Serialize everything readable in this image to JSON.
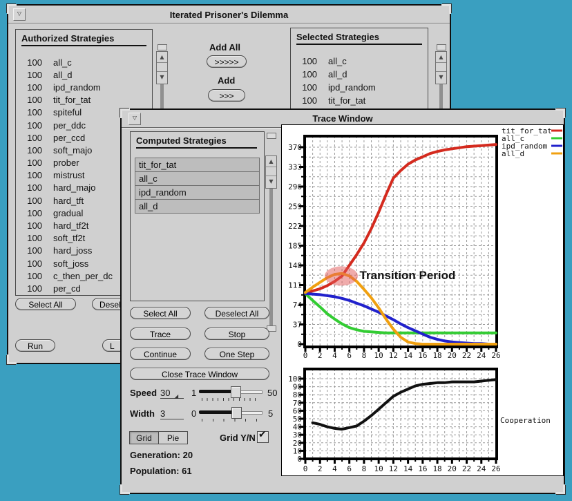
{
  "icons": {
    "window_menu": "▽",
    "scroll_up": "▲",
    "scroll_down": "▼",
    "check": "✔",
    "caret": "◢"
  },
  "colors": {
    "desktop": "#3a9fc0",
    "window_gray": "#d0d0d0",
    "tit_for_tat": "#d42a1e",
    "all_c": "#33cc33",
    "ipd_random": "#2121cc",
    "all_d": "#f0a010",
    "cooperation": "#111111",
    "annotation_ellipse": "rgba(226,90,90,0.5)"
  },
  "main_window": {
    "title": "Iterated Prisoner's Dilemma",
    "authorized": {
      "heading": "Authorized Strategies",
      "items": [
        {
          "count": "100",
          "name": "all_c"
        },
        {
          "count": "100",
          "name": "all_d"
        },
        {
          "count": "100",
          "name": "ipd_random"
        },
        {
          "count": "100",
          "name": "tit_for_tat"
        },
        {
          "count": "100",
          "name": "spiteful"
        },
        {
          "count": "100",
          "name": "per_ddc"
        },
        {
          "count": "100",
          "name": "per_ccd"
        },
        {
          "count": "100",
          "name": "soft_majo"
        },
        {
          "count": "100",
          "name": "prober"
        },
        {
          "count": "100",
          "name": "mistrust"
        },
        {
          "count": "100",
          "name": "hard_majo"
        },
        {
          "count": "100",
          "name": "hard_tft"
        },
        {
          "count": "100",
          "name": "gradual"
        },
        {
          "count": "100",
          "name": "hard_tf2t"
        },
        {
          "count": "100",
          "name": "soft_tf2t"
        },
        {
          "count": "100",
          "name": "hard_joss"
        },
        {
          "count": "100",
          "name": "soft_joss"
        },
        {
          "count": "100",
          "name": "c_then_per_dc"
        },
        {
          "count": "100",
          "name": "per_cd"
        }
      ]
    },
    "transfer": {
      "add_all_label": "Add All",
      "add_all_button": ">>>>>",
      "add_label": "Add",
      "add_button": ">>>"
    },
    "selected": {
      "heading": "Selected Strategies",
      "items": [
        {
          "count": "100",
          "name": "all_c"
        },
        {
          "count": "100",
          "name": "all_d"
        },
        {
          "count": "100",
          "name": "ipd_random"
        },
        {
          "count": "100",
          "name": "tit_for_tat"
        }
      ]
    },
    "footer_buttons": {
      "select_all": "Select All",
      "deselect_all": "Deselect All",
      "run": "Run",
      "partial": "L"
    }
  },
  "trace_window": {
    "title": "Trace Window",
    "computed": {
      "heading": "Computed Strategies",
      "items": [
        "tit_for_tat",
        "all_c",
        "ipd_random",
        "all_d"
      ]
    },
    "controls": {
      "select_all": "Select All",
      "deselect_all": "Deselect All",
      "trace": "Trace",
      "stop": "Stop",
      "continue": "Continue",
      "one_step": "One Step",
      "close": "Close Trace Window"
    },
    "speed": {
      "label": "Speed",
      "value": "30",
      "min": "1",
      "max": "50"
    },
    "width": {
      "label": "Width",
      "value": "3",
      "min": "0",
      "max": "5"
    },
    "view_toggle": {
      "grid": "Grid",
      "pie": "Pie",
      "active": "Grid"
    },
    "grid_yn": {
      "label": "Grid Y/N",
      "checked": true
    },
    "generation_label": "Generation:",
    "generation_value": "20",
    "population_label": "Population:",
    "population_value": "61"
  },
  "chart_data": [
    {
      "type": "line",
      "title": "",
      "xlim": [
        0,
        26
      ],
      "ylim": [
        0,
        393
      ],
      "x_ticks": [
        0,
        2,
        4,
        6,
        8,
        10,
        12,
        14,
        16,
        18,
        20,
        22,
        24,
        26
      ],
      "y_ticks": [
        0,
        37,
        74,
        111,
        148,
        185,
        222,
        259,
        296,
        333,
        370
      ],
      "grid": true,
      "legend_position": "top-right",
      "series": [
        {
          "name": "tit_for_tat",
          "color": "#d42a1e",
          "x": [
            0,
            1,
            2,
            3,
            4,
            5,
            6,
            7,
            8,
            9,
            10,
            11,
            12,
            13,
            14,
            15,
            16,
            17,
            18,
            19,
            20,
            21,
            22,
            23,
            24,
            25,
            26
          ],
          "values": [
            97,
            100,
            104,
            110,
            118,
            128,
            148,
            168,
            190,
            217,
            248,
            281,
            312,
            326,
            338,
            346,
            352,
            358,
            362,
            365,
            367,
            369,
            371,
            372,
            373,
            374,
            375
          ]
        },
        {
          "name": "all_c",
          "color": "#33cc33",
          "x": [
            0,
            1,
            2,
            3,
            4,
            5,
            6,
            7,
            8,
            9,
            10,
            11,
            12,
            13,
            14,
            15,
            16,
            17,
            18,
            19,
            20,
            21,
            22,
            23,
            24,
            25,
            26
          ],
          "values": [
            95,
            82,
            70,
            57,
            47,
            38,
            31,
            27,
            24,
            23,
            22,
            21,
            21,
            21,
            21,
            21,
            21,
            21,
            21,
            21,
            21,
            21,
            21,
            21,
            21,
            21,
            21
          ]
        },
        {
          "name": "ipd_random",
          "color": "#2121cc",
          "x": [
            0,
            1,
            2,
            3,
            4,
            5,
            6,
            7,
            8,
            9,
            10,
            11,
            12,
            13,
            14,
            15,
            16,
            17,
            18,
            19,
            20,
            21,
            22,
            23,
            24,
            25,
            26
          ],
          "values": [
            95,
            94,
            93,
            91,
            89,
            86,
            82,
            77,
            72,
            66,
            60,
            53,
            46,
            38,
            31,
            25,
            19,
            13,
            9,
            6,
            4,
            3,
            2,
            1,
            1,
            0,
            0
          ]
        },
        {
          "name": "all_d",
          "color": "#f0a010",
          "x": [
            0,
            1,
            2,
            3,
            4,
            5,
            6,
            7,
            8,
            9,
            10,
            11,
            12,
            13,
            14,
            15,
            16,
            17,
            18,
            19,
            20,
            21,
            22,
            23,
            24,
            25,
            26
          ],
          "values": [
            97,
            107,
            116,
            125,
            131,
            133,
            128,
            118,
            103,
            87,
            68,
            47,
            28,
            13,
            4,
            1,
            0,
            0,
            0,
            0,
            0,
            0,
            0,
            0,
            0,
            0,
            0
          ]
        }
      ],
      "annotation": {
        "text": "Transition Period",
        "ellipse_center": {
          "x": 4.9,
          "y": 128
        },
        "text_pos": {
          "x": 7.4,
          "y": 122
        }
      }
    },
    {
      "type": "line",
      "title": "",
      "xlim": [
        0,
        26
      ],
      "ylim": [
        0,
        112
      ],
      "x_ticks": [
        0,
        2,
        4,
        6,
        8,
        10,
        12,
        14,
        16,
        18,
        20,
        22,
        24,
        26
      ],
      "y_ticks": [
        0,
        10,
        20,
        30,
        40,
        50,
        60,
        70,
        80,
        90,
        100
      ],
      "grid": true,
      "right_label": "Cooperation",
      "series": [
        {
          "name": "Cooperation",
          "color": "#111111",
          "x": [
            1,
            2,
            3,
            4,
            5,
            6,
            7,
            8,
            9,
            10,
            11,
            12,
            13,
            14,
            15,
            16,
            17,
            18,
            19,
            20,
            21,
            22,
            23,
            24,
            25,
            26
          ],
          "values": [
            45,
            43,
            40,
            38,
            37,
            39,
            41,
            47,
            54,
            62,
            70,
            78,
            83,
            87,
            91,
            93,
            94,
            95,
            95,
            96,
            96,
            96,
            96,
            97,
            98,
            99
          ]
        }
      ]
    }
  ]
}
